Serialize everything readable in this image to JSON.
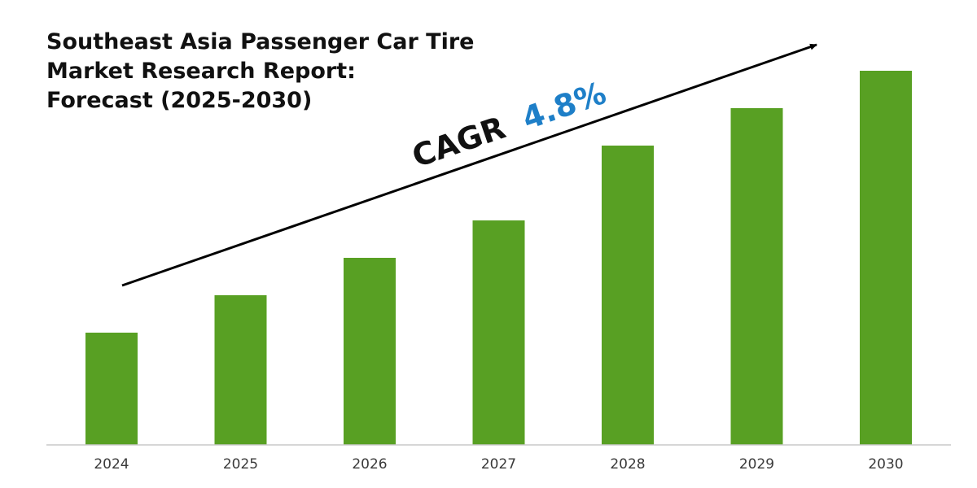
{
  "title_lines": [
    "Southeast Asia Passenger Car Tire",
    "Market Research Report:",
    "Forecast (2025-2030)"
  ],
  "chart_data": {
    "type": "bar",
    "categories": [
      "2024",
      "2025",
      "2026",
      "2027",
      "2028",
      "2029",
      "2030"
    ],
    "values": [
      30,
      40,
      50,
      60,
      80,
      90,
      100
    ],
    "ylim": [
      0,
      100
    ],
    "grid": false,
    "annotation": {
      "prefix": "CAGR",
      "value": "4.8%"
    }
  },
  "colors": {
    "bar": "#58a023",
    "axis": "#c8c8c8",
    "arrow": "#000000",
    "cagr_label": "#111111",
    "cagr_value": "#1e7fc8"
  }
}
